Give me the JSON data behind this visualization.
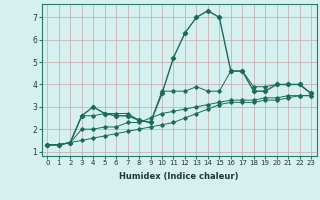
{
  "xlabel": "Humidex (Indice chaleur)",
  "background_color": "#d5f0ee",
  "grid_color": "#c8a8a8",
  "line_color": "#1a6b5a",
  "xlim": [
    -0.5,
    23.5
  ],
  "ylim": [
    0.8,
    7.6
  ],
  "xticks": [
    0,
    1,
    2,
    3,
    4,
    5,
    6,
    7,
    8,
    9,
    10,
    11,
    12,
    13,
    14,
    15,
    16,
    17,
    18,
    19,
    20,
    21,
    22,
    23
  ],
  "yticks": [
    1,
    2,
    3,
    4,
    5,
    6,
    7
  ],
  "series1_x": [
    0,
    1,
    2,
    3,
    4,
    5,
    6,
    7,
    8,
    9,
    10,
    11,
    12,
    13,
    14,
    15,
    16,
    17,
    18,
    19,
    20,
    21,
    22,
    23
  ],
  "series1_y": [
    1.3,
    1.3,
    1.4,
    2.6,
    2.6,
    2.7,
    2.7,
    2.7,
    2.4,
    2.3,
    3.7,
    3.7,
    3.7,
    3.9,
    3.7,
    3.7,
    4.6,
    4.6,
    3.9,
    3.9,
    4.0,
    4.0,
    4.0,
    3.6
  ],
  "series2_x": [
    0,
    1,
    2,
    3,
    4,
    5,
    6,
    7,
    8,
    9,
    10,
    11,
    12,
    13,
    14,
    15,
    16,
    17,
    18,
    19,
    20,
    21,
    22,
    23
  ],
  "series2_y": [
    1.3,
    1.3,
    1.4,
    2.0,
    2.0,
    2.1,
    2.1,
    2.3,
    2.3,
    2.5,
    2.7,
    2.8,
    2.9,
    3.0,
    3.1,
    3.2,
    3.3,
    3.3,
    3.3,
    3.4,
    3.4,
    3.5,
    3.5,
    3.5
  ],
  "series3_x": [
    0,
    1,
    2,
    3,
    4,
    5,
    6,
    7,
    8,
    9,
    10,
    11,
    12,
    13,
    14,
    15,
    16,
    17,
    18,
    19,
    20,
    21,
    22,
    23
  ],
  "series3_y": [
    1.3,
    1.3,
    1.4,
    1.5,
    1.6,
    1.7,
    1.8,
    1.9,
    2.0,
    2.1,
    2.2,
    2.3,
    2.5,
    2.7,
    2.9,
    3.1,
    3.2,
    3.2,
    3.2,
    3.3,
    3.3,
    3.4,
    3.5,
    3.5
  ],
  "series4_x": [
    0,
    1,
    2,
    3,
    4,
    5,
    6,
    7,
    8,
    9,
    10,
    11,
    12,
    13,
    14,
    15,
    16,
    17,
    18,
    19,
    20,
    21,
    22,
    23
  ],
  "series4_y": [
    1.3,
    1.3,
    1.4,
    2.6,
    3.0,
    2.7,
    2.6,
    2.6,
    2.4,
    2.3,
    3.6,
    5.2,
    6.3,
    7.0,
    7.3,
    7.0,
    4.6,
    4.6,
    3.7,
    3.7,
    4.0,
    4.0,
    4.0,
    3.6
  ]
}
